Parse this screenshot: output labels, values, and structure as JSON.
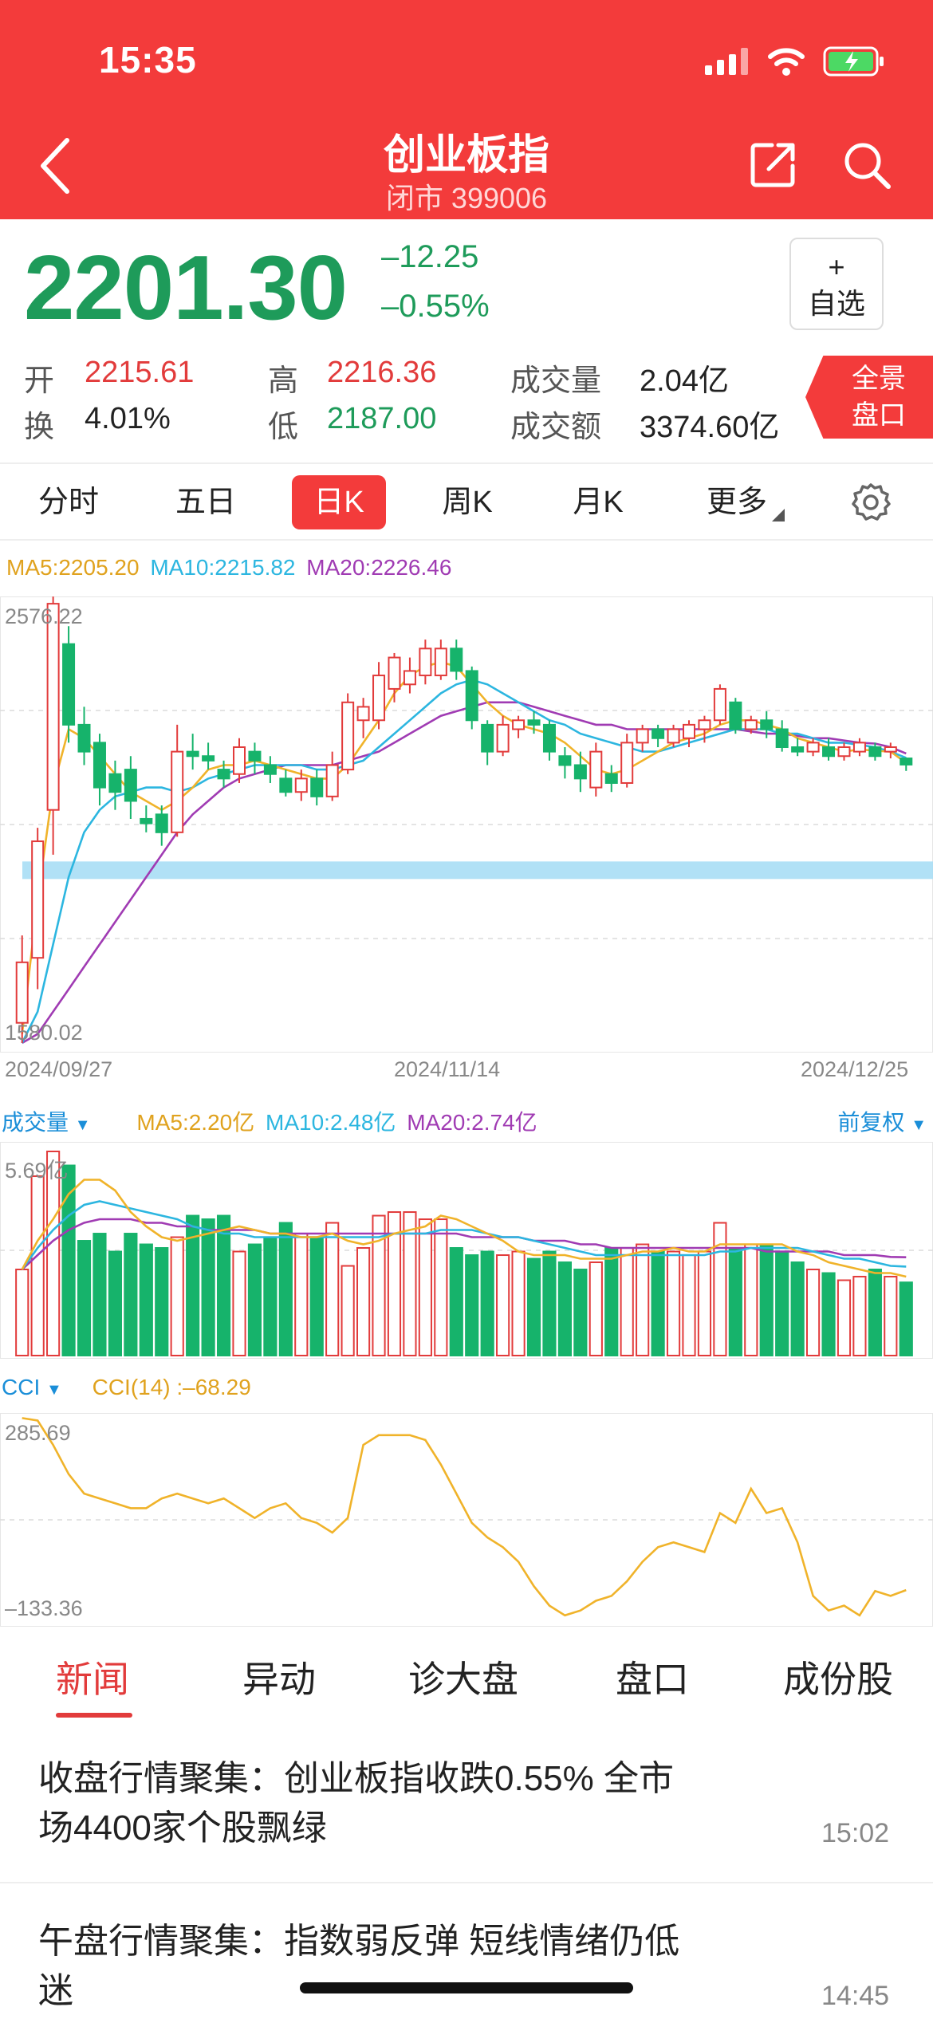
{
  "status": {
    "time": "15:35"
  },
  "nav": {
    "title": "创业板指",
    "subtitle": "闭市 399006"
  },
  "quote": {
    "price": "2201.30",
    "change": "–12.25",
    "change_pct": "–0.55%",
    "watch_plus": "+",
    "watch_label": "自选",
    "open_label": "开",
    "open": "2215.61",
    "high_label": "高",
    "high": "2216.36",
    "volume_label": "成交量",
    "volume": "2.04亿",
    "turnover_label": "换",
    "turnover": "4.01%",
    "low_label": "低",
    "low": "2187.00",
    "amount_label": "成交额",
    "amount": "3374.60亿",
    "panorama_line1": "全景",
    "panorama_line2": "盘口"
  },
  "tabs": [
    "分时",
    "五日",
    "日K",
    "周K",
    "月K",
    "更多"
  ],
  "active_tab": "日K",
  "colors": {
    "up": "#e23b3b",
    "down": "#16b36b",
    "ma5": "#f0b32a",
    "ma10": "#2cb6e0",
    "ma20": "#a03bb3",
    "accent": "#f33b3b"
  },
  "kline": {
    "ma5": "MA5:2205.20",
    "ma10": "MA10:2215.82",
    "ma20": "MA20:2226.46",
    "y_max": "2576.22",
    "y_min": "1580.02",
    "dates": [
      "2024/09/27",
      "2024/11/14",
      "2024/12/25"
    ]
  },
  "volume_panel": {
    "label": "成交量",
    "ma5": "MA5:2.20亿",
    "ma10": "MA10:2.48亿",
    "ma20": "MA20:2.74亿",
    "adjust": "前复权",
    "y_max": "5.69亿"
  },
  "cci_panel": {
    "label": "CCI",
    "value": "CCI(14)  :–68.29",
    "y_max": "285.69",
    "y_min": "–133.36"
  },
  "chart_data": [
    {
      "type": "candlestick",
      "title": "创业板指 日K",
      "x_start": "2024/09/27",
      "x_end": "2024/12/25",
      "ylim": [
        1580.02,
        2576.22
      ],
      "candles": [
        [
          1625,
          1760,
          1580,
          1820
        ],
        [
          1770,
          2030,
          1700,
          2060
        ],
        [
          2100,
          2560,
          2000,
          2576
        ],
        [
          2470,
          2290,
          2250,
          2510
        ],
        [
          2290,
          2230,
          2200,
          2330
        ],
        [
          2250,
          2150,
          2110,
          2270
        ],
        [
          2180,
          2140,
          2100,
          2210
        ],
        [
          2190,
          2120,
          2080,
          2220
        ],
        [
          2080,
          2070,
          2050,
          2110
        ],
        [
          2090,
          2050,
          2020,
          2110
        ],
        [
          2050,
          2230,
          2040,
          2290
        ],
        [
          2230,
          2220,
          2190,
          2270
        ],
        [
          2220,
          2210,
          2190,
          2250
        ],
        [
          2190,
          2170,
          2150,
          2210
        ],
        [
          2180,
          2240,
          2160,
          2260
        ],
        [
          2230,
          2210,
          2180,
          2250
        ],
        [
          2200,
          2180,
          2160,
          2220
        ],
        [
          2170,
          2140,
          2130,
          2190
        ],
        [
          2140,
          2170,
          2120,
          2190
        ],
        [
          2170,
          2130,
          2110,
          2190
        ],
        [
          2130,
          2200,
          2120,
          2230
        ],
        [
          2190,
          2340,
          2180,
          2360
        ],
        [
          2300,
          2330,
          2260,
          2350
        ],
        [
          2300,
          2400,
          2280,
          2430
        ],
        [
          2370,
          2440,
          2340,
          2450
        ],
        [
          2380,
          2410,
          2360,
          2440
        ],
        [
          2400,
          2460,
          2380,
          2480
        ],
        [
          2400,
          2460,
          2390,
          2480
        ],
        [
          2460,
          2410,
          2390,
          2480
        ],
        [
          2410,
          2300,
          2280,
          2420
        ],
        [
          2290,
          2230,
          2200,
          2300
        ],
        [
          2230,
          2290,
          2220,
          2310
        ],
        [
          2280,
          2300,
          2260,
          2310
        ],
        [
          2300,
          2290,
          2270,
          2320
        ],
        [
          2290,
          2230,
          2210,
          2300
        ],
        [
          2220,
          2200,
          2170,
          2240
        ],
        [
          2200,
          2170,
          2140,
          2230
        ],
        [
          2150,
          2230,
          2130,
          2250
        ],
        [
          2180,
          2160,
          2140,
          2200
        ],
        [
          2160,
          2250,
          2150,
          2270
        ],
        [
          2250,
          2280,
          2230,
          2290
        ],
        [
          2280,
          2260,
          2240,
          2290
        ],
        [
          2250,
          2280,
          2240,
          2290
        ],
        [
          2260,
          2290,
          2240,
          2300
        ],
        [
          2280,
          2300,
          2250,
          2310
        ],
        [
          2300,
          2370,
          2290,
          2380
        ],
        [
          2340,
          2280,
          2270,
          2350
        ],
        [
          2280,
          2300,
          2270,
          2310
        ],
        [
          2300,
          2280,
          2260,
          2320
        ],
        [
          2280,
          2240,
          2230,
          2300
        ],
        [
          2240,
          2230,
          2220,
          2260
        ],
        [
          2230,
          2250,
          2220,
          2260
        ],
        [
          2240,
          2220,
          2210,
          2260
        ],
        [
          2220,
          2240,
          2210,
          2250
        ],
        [
          2230,
          2250,
          2220,
          2260
        ],
        [
          2240,
          2220,
          2210,
          2250
        ],
        [
          2230,
          2240,
          2215,
          2250
        ],
        [
          2215,
          2201,
          2187,
          2216
        ]
      ],
      "ma5": [
        1600,
        1900,
        2150,
        2280,
        2260,
        2220,
        2180,
        2140,
        2120,
        2100,
        2120,
        2150,
        2190,
        2200,
        2200,
        2210,
        2200,
        2190,
        2180,
        2170,
        2170,
        2200,
        2250,
        2300,
        2360,
        2400,
        2420,
        2430,
        2420,
        2380,
        2340,
        2310,
        2290,
        2280,
        2270,
        2250,
        2220,
        2190,
        2180,
        2190,
        2210,
        2230,
        2250,
        2260,
        2270,
        2290,
        2300,
        2300,
        2290,
        2280,
        2260,
        2250,
        2240,
        2230,
        2235,
        2232,
        2230,
        2205
      ],
      "ma10": [
        1580,
        1650,
        1800,
        1950,
        2050,
        2100,
        2130,
        2140,
        2150,
        2150,
        2140,
        2150,
        2170,
        2180,
        2190,
        2200,
        2200,
        2200,
        2200,
        2190,
        2190,
        2200,
        2210,
        2240,
        2270,
        2300,
        2330,
        2360,
        2380,
        2390,
        2380,
        2360,
        2340,
        2320,
        2300,
        2290,
        2270,
        2260,
        2250,
        2240,
        2230,
        2230,
        2240,
        2250,
        2260,
        2270,
        2280,
        2280,
        2280,
        2270,
        2270,
        2260,
        2250,
        2250,
        2245,
        2240,
        2230,
        2216
      ],
      "ma20": [
        1580,
        1600,
        1650,
        1700,
        1750,
        1800,
        1850,
        1900,
        1950,
        2000,
        2050,
        2090,
        2120,
        2150,
        2170,
        2180,
        2190,
        2200,
        2200,
        2200,
        2200,
        2210,
        2220,
        2230,
        2250,
        2270,
        2290,
        2310,
        2320,
        2330,
        2340,
        2340,
        2340,
        2330,
        2320,
        2310,
        2300,
        2290,
        2290,
        2280,
        2280,
        2280,
        2280,
        2280,
        2280,
        2280,
        2280,
        2275,
        2270,
        2270,
        2265,
        2260,
        2260,
        2255,
        2250,
        2248,
        2240,
        2226
      ]
    },
    {
      "type": "bar",
      "title": "成交量",
      "ylim": [
        0,
        5.69
      ],
      "values": [
        2.4,
        5.0,
        5.69,
        5.3,
        3.2,
        3.4,
        2.9,
        3.4,
        3.1,
        3.0,
        3.3,
        3.9,
        3.8,
        3.9,
        2.9,
        3.1,
        3.3,
        3.7,
        3.4,
        3.3,
        3.7,
        2.5,
        3.0,
        3.9,
        4.0,
        4.0,
        3.8,
        3.8,
        3.0,
        2.8,
        2.9,
        2.8,
        2.9,
        2.7,
        2.9,
        2.6,
        2.4,
        2.6,
        3.0,
        3.0,
        3.1,
        2.9,
        2.9,
        2.8,
        2.9,
        3.7,
        3.0,
        3.1,
        3.1,
        2.9,
        2.6,
        2.4,
        2.3,
        2.1,
        2.2,
        2.4,
        2.2,
        2.04
      ],
      "ma5": [
        2.4,
        3.2,
        3.8,
        4.5,
        4.9,
        4.9,
        4.6,
        4.0,
        3.6,
        3.3,
        3.2,
        3.3,
        3.4,
        3.5,
        3.6,
        3.5,
        3.4,
        3.4,
        3.3,
        3.3,
        3.4,
        3.2,
        3.1,
        3.2,
        3.4,
        3.5,
        3.6,
        3.9,
        3.8,
        3.6,
        3.4,
        3.2,
        2.9,
        2.8,
        2.8,
        2.8,
        2.7,
        2.7,
        2.7,
        2.8,
        2.9,
        2.9,
        3.0,
        2.9,
        2.9,
        3.1,
        3.1,
        3.1,
        3.1,
        3.1,
        2.9,
        2.8,
        2.6,
        2.5,
        2.4,
        2.3,
        2.3,
        2.2
      ],
      "ma10": [
        2.4,
        3.0,
        3.5,
        3.9,
        4.2,
        4.3,
        4.2,
        4.1,
        4.0,
        3.9,
        3.8,
        3.6,
        3.5,
        3.4,
        3.4,
        3.3,
        3.3,
        3.3,
        3.3,
        3.3,
        3.3,
        3.3,
        3.3,
        3.3,
        3.4,
        3.4,
        3.4,
        3.5,
        3.5,
        3.5,
        3.4,
        3.3,
        3.3,
        3.2,
        3.1,
        3.0,
        2.9,
        2.8,
        2.8,
        2.8,
        2.8,
        2.8,
        2.8,
        2.8,
        2.8,
        2.9,
        2.9,
        3.0,
        3.0,
        3.0,
        3.0,
        2.9,
        2.8,
        2.7,
        2.7,
        2.6,
        2.5,
        2.48
      ],
      "ma20": [
        2.4,
        2.8,
        3.2,
        3.5,
        3.7,
        3.8,
        3.8,
        3.8,
        3.7,
        3.7,
        3.6,
        3.6,
        3.5,
        3.5,
        3.5,
        3.5,
        3.4,
        3.4,
        3.4,
        3.4,
        3.4,
        3.4,
        3.4,
        3.4,
        3.4,
        3.4,
        3.4,
        3.4,
        3.4,
        3.3,
        3.3,
        3.3,
        3.3,
        3.2,
        3.2,
        3.2,
        3.1,
        3.1,
        3.0,
        3.0,
        3.0,
        3.0,
        3.0,
        3.0,
        3.0,
        3.0,
        3.0,
        3.0,
        2.9,
        2.9,
        2.9,
        2.9,
        2.9,
        2.8,
        2.8,
        2.8,
        2.75,
        2.74
      ]
    },
    {
      "type": "line",
      "title": "CCI(14)",
      "ylim": [
        -133.36,
        285.69
      ],
      "values": [
        285,
        280,
        230,
        170,
        130,
        120,
        110,
        100,
        100,
        120,
        130,
        120,
        110,
        120,
        100,
        80,
        100,
        110,
        80,
        70,
        50,
        80,
        230,
        250,
        250,
        250,
        240,
        190,
        130,
        70,
        40,
        20,
        -10,
        -60,
        -100,
        -120,
        -110,
        -90,
        -80,
        -50,
        -10,
        20,
        30,
        20,
        10,
        90,
        70,
        140,
        90,
        100,
        30,
        -80,
        -110,
        -100,
        -120,
        -70,
        -80,
        -68
      ]
    }
  ],
  "news_tabs": [
    "新闻",
    "异动",
    "诊大盘",
    "盘口",
    "成份股"
  ],
  "news": [
    {
      "title": "收盘行情聚集：创业板指收跌0.55% 全市场4400家个股飘绿",
      "time": "15:02"
    },
    {
      "title": "午盘行情聚集：指数弱反弹 短线情绪仍低迷",
      "time": "14:45"
    }
  ]
}
